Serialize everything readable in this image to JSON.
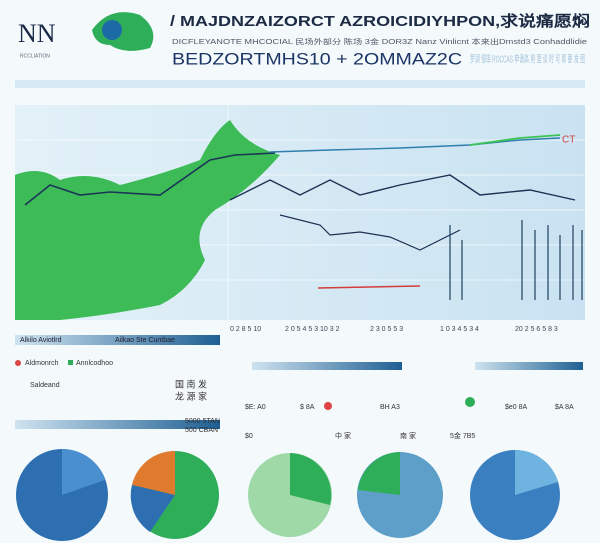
{
  "header": {
    "logo": "NN",
    "logo_sub": "RCCLIATION",
    "title": "/ MAJDNZAIZORCT AZROICIDIYHPON,求说痛愿焖",
    "subtitle": "DICFLEYANOTE MHCOCIAL 民场外部分 陈场 3金 DOR3Z Nanz Vinlicnt 本来出Dmstd3 Conhaddlidie",
    "headline": "BEDZORTMHS10 + 2OMMAZ2C",
    "side_text": "罗湖 邹库 ROCCAS 申请高 用 里 谈 时 可 耶 要 发 图"
  },
  "map_panel": {
    "marker": "CT",
    "axis_labels": [
      "0 2 8 5 10",
      "2 0 5 4 5 3 10 3 2",
      "2 3 0 5 5 3",
      "1 0 3 4 5 3 4",
      "20 2 5 6 5 8 3"
    ]
  },
  "caption_bar": {
    "left": "Alkilo Aviotlrd",
    "mid": "Ailkao Ste Cuntbae"
  },
  "legend": {
    "items": [
      "Aldmonrch",
      "Annlcodhoo",
      "Saldeand"
    ],
    "labels": [
      "国 南 发",
      "龙 源 家"
    ]
  },
  "mid_row": {
    "labels": [
      "$E: A0",
      "$ 8A",
      "BH A3",
      "$e0 8A",
      "$A 8A"
    ]
  },
  "pies": {
    "callouts": [
      "5000 5TAN",
      "500 CBAN"
    ],
    "tags": [
      "$0",
      "中 家",
      "南 家",
      "5金 7B5"
    ]
  }
}
